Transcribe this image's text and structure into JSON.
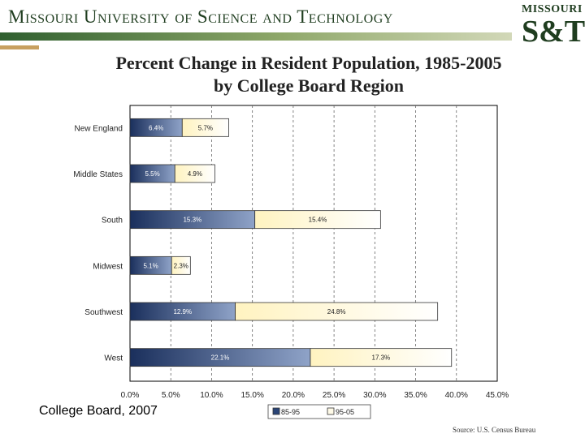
{
  "header": {
    "university_name": "Missouri University of Science and Technology",
    "logo_top": "MISSOURI",
    "logo_main": "S&T",
    "colors": {
      "green": "#1f3d1f",
      "gold": "#c8a060"
    }
  },
  "title": {
    "line1": "Percent Change in Resident Population, 1985-2005",
    "line2": "by College Board Region"
  },
  "chart_data": {
    "type": "bar",
    "orientation": "horizontal",
    "stacked": true,
    "categories": [
      "New England",
      "Middle States",
      "South",
      "Midwest",
      "Southwest",
      "West"
    ],
    "series": [
      {
        "name": "85-95",
        "values": [
          6.4,
          5.5,
          15.3,
          5.1,
          12.9,
          22.1
        ],
        "labels": [
          "6.4%",
          "5.5%",
          "15.3%",
          "5.1%",
          "12.9%",
          "22.1%"
        ],
        "color": "#3a5a8a"
      },
      {
        "name": "95-05",
        "values": [
          5.7,
          4.9,
          15.4,
          2.3,
          24.8,
          17.3
        ],
        "labels": [
          "5.7%",
          "4.9%",
          "15.4%",
          "2.3%",
          "24.8%",
          "17.3%"
        ],
        "color": "#fff8d8"
      }
    ],
    "xlim": [
      0,
      45
    ],
    "x_ticks": [
      "0.0%",
      "5.0%",
      "10.0%",
      "15.0%",
      "20.0%",
      "25.0%",
      "30.0%",
      "35.0%",
      "40.0%",
      "45.0%"
    ],
    "grid": "vertical dashed",
    "legend_position": "bottom"
  },
  "footer": {
    "credit": "College Board, 2007",
    "source": "Source: U.S. Census Bureau"
  }
}
